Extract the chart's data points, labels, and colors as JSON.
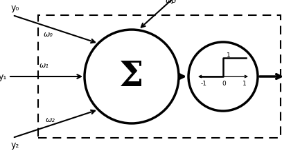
{
  "fig_width": 4.2,
  "fig_height": 2.22,
  "dpi": 100,
  "bg_color": "#ffffff",
  "line_color": "#000000",
  "sigma_symbol": "Σ",
  "omega_beta": "ωβ",
  "omega_0": "ω₀",
  "omega_1": "ω₁",
  "omega_2": "ω₂",
  "y0": "y₀",
  "y1": "y₁",
  "y2": "y₂",
  "bias_label": "1"
}
